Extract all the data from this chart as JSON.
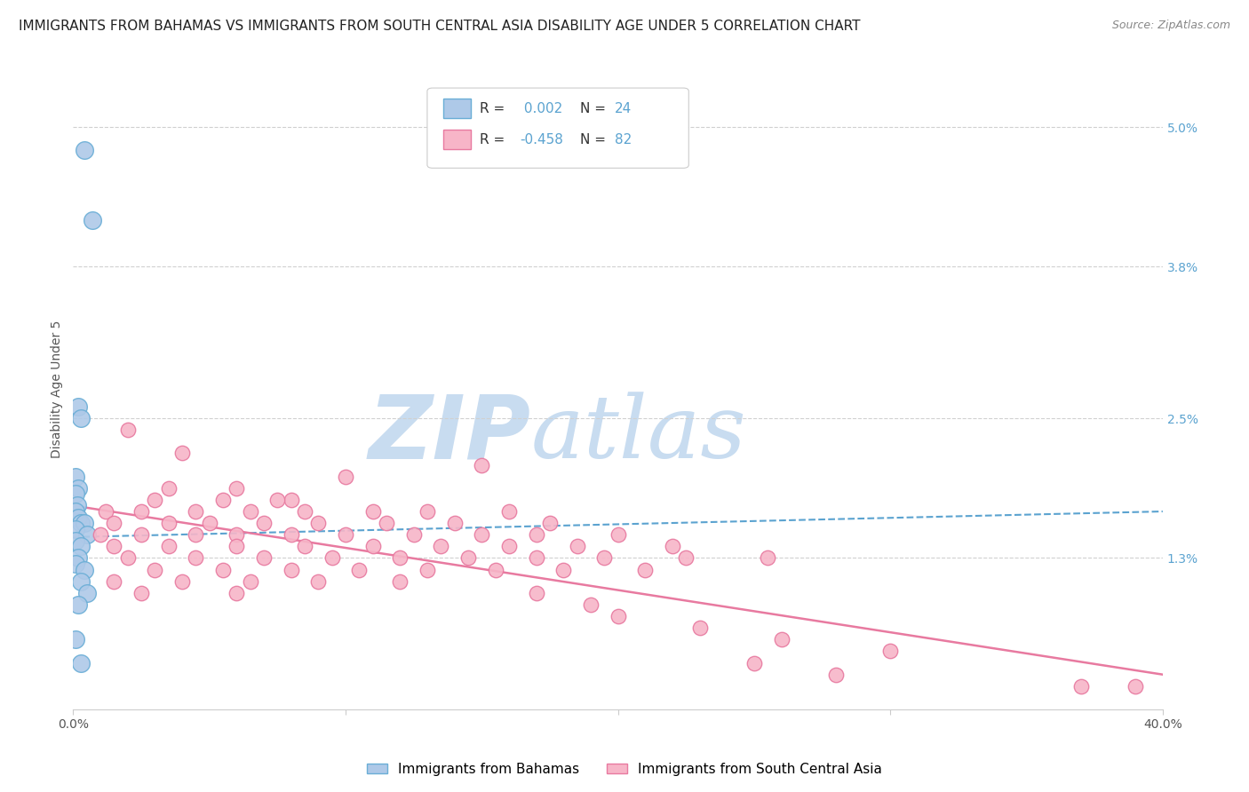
{
  "title": "IMMIGRANTS FROM BAHAMAS VS IMMIGRANTS FROM SOUTH CENTRAL ASIA DISABILITY AGE UNDER 5 CORRELATION CHART",
  "source": "Source: ZipAtlas.com",
  "ylabel": "Disability Age Under 5",
  "xmin": 0.0,
  "xmax": 0.4,
  "ymin": 0.0,
  "ymax": 0.055,
  "bahamas_points": [
    [
      0.004,
      0.048
    ],
    [
      0.007,
      0.042
    ],
    [
      0.002,
      0.026
    ],
    [
      0.003,
      0.025
    ],
    [
      0.001,
      0.02
    ],
    [
      0.002,
      0.019
    ],
    [
      0.001,
      0.0185
    ],
    [
      0.0015,
      0.0175
    ],
    [
      0.001,
      0.017
    ],
    [
      0.002,
      0.0165
    ],
    [
      0.003,
      0.016
    ],
    [
      0.004,
      0.016
    ],
    [
      0.001,
      0.0155
    ],
    [
      0.005,
      0.015
    ],
    [
      0.001,
      0.0145
    ],
    [
      0.003,
      0.014
    ],
    [
      0.002,
      0.013
    ],
    [
      0.001,
      0.0125
    ],
    [
      0.004,
      0.012
    ],
    [
      0.003,
      0.011
    ],
    [
      0.005,
      0.01
    ],
    [
      0.002,
      0.009
    ],
    [
      0.001,
      0.006
    ],
    [
      0.003,
      0.004
    ]
  ],
  "sca_points": [
    [
      0.02,
      0.024
    ],
    [
      0.04,
      0.022
    ],
    [
      0.15,
      0.021
    ],
    [
      0.1,
      0.02
    ],
    [
      0.06,
      0.019
    ],
    [
      0.035,
      0.019
    ],
    [
      0.08,
      0.018
    ],
    [
      0.03,
      0.018
    ],
    [
      0.055,
      0.018
    ],
    [
      0.075,
      0.018
    ],
    [
      0.012,
      0.017
    ],
    [
      0.025,
      0.017
    ],
    [
      0.045,
      0.017
    ],
    [
      0.065,
      0.017
    ],
    [
      0.085,
      0.017
    ],
    [
      0.11,
      0.017
    ],
    [
      0.13,
      0.017
    ],
    [
      0.16,
      0.017
    ],
    [
      0.015,
      0.016
    ],
    [
      0.035,
      0.016
    ],
    [
      0.05,
      0.016
    ],
    [
      0.07,
      0.016
    ],
    [
      0.09,
      0.016
    ],
    [
      0.115,
      0.016
    ],
    [
      0.14,
      0.016
    ],
    [
      0.175,
      0.016
    ],
    [
      0.01,
      0.015
    ],
    [
      0.025,
      0.015
    ],
    [
      0.045,
      0.015
    ],
    [
      0.06,
      0.015
    ],
    [
      0.08,
      0.015
    ],
    [
      0.1,
      0.015
    ],
    [
      0.125,
      0.015
    ],
    [
      0.15,
      0.015
    ],
    [
      0.17,
      0.015
    ],
    [
      0.2,
      0.015
    ],
    [
      0.015,
      0.014
    ],
    [
      0.035,
      0.014
    ],
    [
      0.06,
      0.014
    ],
    [
      0.085,
      0.014
    ],
    [
      0.11,
      0.014
    ],
    [
      0.135,
      0.014
    ],
    [
      0.16,
      0.014
    ],
    [
      0.185,
      0.014
    ],
    [
      0.22,
      0.014
    ],
    [
      0.02,
      0.013
    ],
    [
      0.045,
      0.013
    ],
    [
      0.07,
      0.013
    ],
    [
      0.095,
      0.013
    ],
    [
      0.12,
      0.013
    ],
    [
      0.145,
      0.013
    ],
    [
      0.17,
      0.013
    ],
    [
      0.195,
      0.013
    ],
    [
      0.225,
      0.013
    ],
    [
      0.255,
      0.013
    ],
    [
      0.03,
      0.012
    ],
    [
      0.055,
      0.012
    ],
    [
      0.08,
      0.012
    ],
    [
      0.105,
      0.012
    ],
    [
      0.13,
      0.012
    ],
    [
      0.155,
      0.012
    ],
    [
      0.18,
      0.012
    ],
    [
      0.21,
      0.012
    ],
    [
      0.015,
      0.011
    ],
    [
      0.04,
      0.011
    ],
    [
      0.065,
      0.011
    ],
    [
      0.09,
      0.011
    ],
    [
      0.12,
      0.011
    ],
    [
      0.025,
      0.01
    ],
    [
      0.06,
      0.01
    ],
    [
      0.17,
      0.01
    ],
    [
      0.19,
      0.009
    ],
    [
      0.2,
      0.008
    ],
    [
      0.23,
      0.007
    ],
    [
      0.26,
      0.006
    ],
    [
      0.3,
      0.005
    ],
    [
      0.25,
      0.004
    ],
    [
      0.28,
      0.003
    ],
    [
      0.37,
      0.002
    ],
    [
      0.39,
      0.002
    ]
  ],
  "blue_trendline": {
    "x": [
      0.0,
      0.4
    ],
    "y": [
      0.0148,
      0.017
    ]
  },
  "pink_trendline": {
    "x": [
      0.0,
      0.4
    ],
    "y": [
      0.0175,
      0.003
    ]
  },
  "bahamas_color": "#aec9e8",
  "bahamas_edge_color": "#6aaed6",
  "sca_color": "#f7b5c8",
  "sca_edge_color": "#e87aa0",
  "blue_line_color": "#5ba3d0",
  "pink_line_color": "#e87aa0",
  "grid_color": "#d0d0d0",
  "background_color": "#ffffff",
  "watermark_zip_color": "#c8dcf0",
  "watermark_atlas_color": "#c8dcf0",
  "title_fontsize": 11,
  "source_fontsize": 9,
  "axis_label_fontsize": 10,
  "tick_fontsize": 10,
  "right_tick_color": "#5ba3d0",
  "legend_r_color": "#5ba3d0",
  "legend_n_color": "#5ba3d0"
}
